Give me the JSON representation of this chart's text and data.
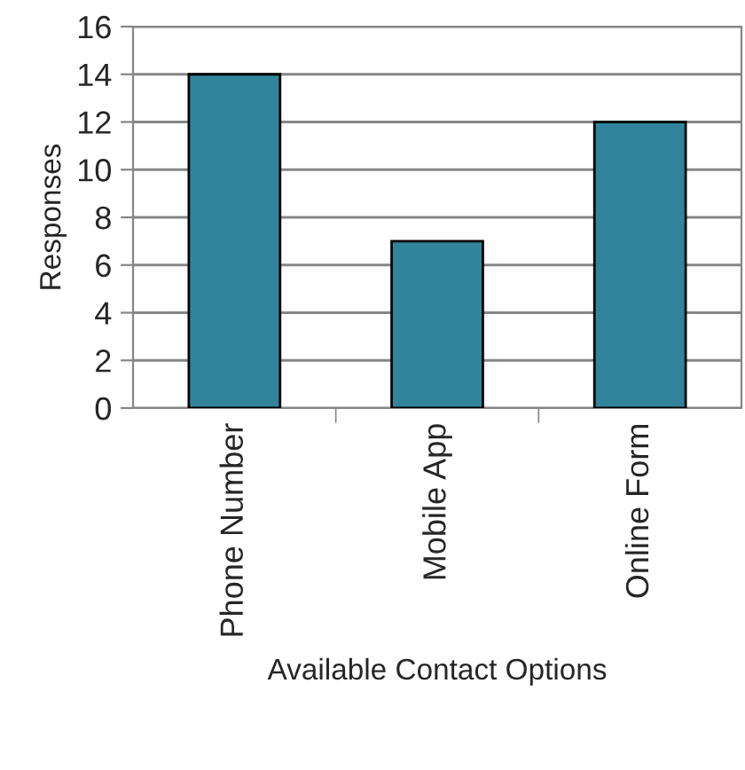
{
  "chart_data": {
    "type": "bar",
    "xlabel": "Available Contact Options",
    "ylabel": "Responses",
    "categories": [
      "Phone Number",
      "Mobile App",
      "Online Form"
    ],
    "values": [
      14,
      7,
      12
    ],
    "color": "#31849b",
    "ylim": [
      0,
      16
    ],
    "yticks": [
      0,
      2,
      4,
      6,
      8,
      10,
      12,
      14,
      16
    ],
    "grid": "y"
  }
}
